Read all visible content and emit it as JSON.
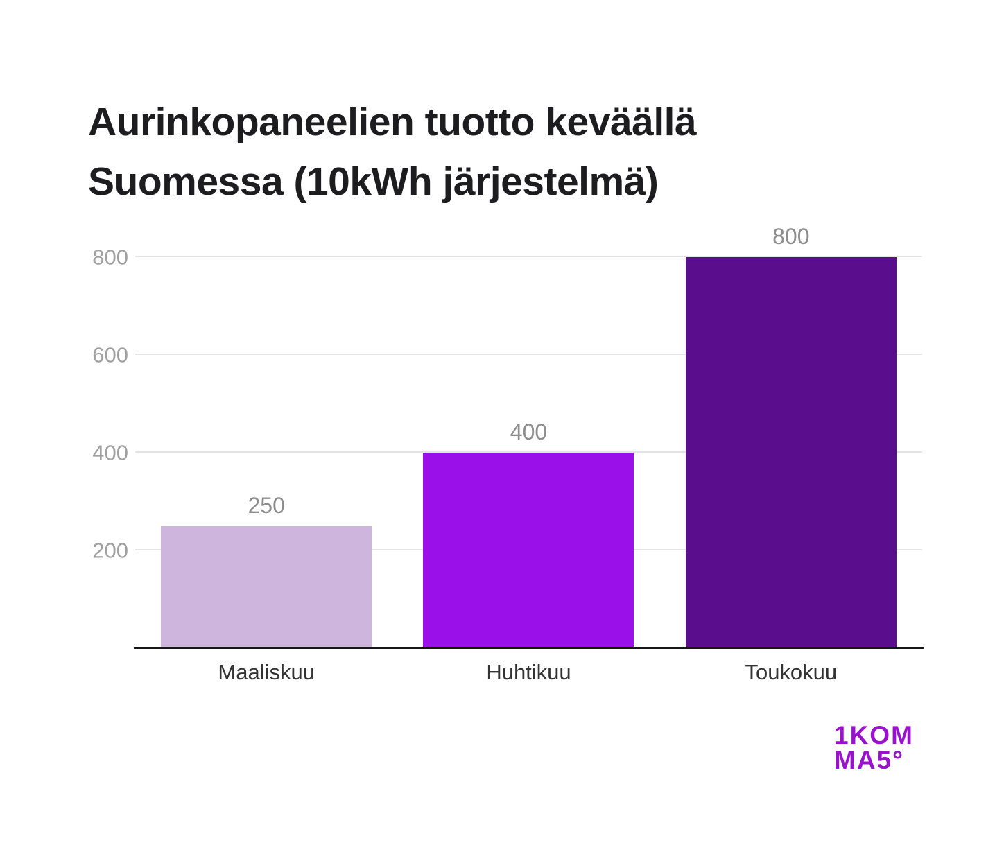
{
  "title": {
    "line1": "Aurinkopaneelien tuotto keväällä",
    "line2": "Suomessa (10kWh järjestelmä)"
  },
  "chart_data": {
    "type": "bar",
    "title": "Aurinkopaneelien tuotto keväällä Suomessa (10kWh järjestelmä)",
    "categories": [
      "Maaliskuu",
      "Huhtikuu",
      "Toukokuu"
    ],
    "values": [
      250,
      400,
      800
    ],
    "value_labels": [
      "250",
      "400",
      "800"
    ],
    "bar_colors": [
      "#cdb5de",
      "#9a10e9",
      "#5a0e8d"
    ],
    "yticks": [
      200,
      400,
      600,
      800
    ],
    "ylim": [
      0,
      800
    ],
    "grid": true,
    "legend": "none",
    "xlabel": "",
    "ylabel": ""
  },
  "logo": {
    "line1": "1KOM",
    "line2": "MA5°",
    "color": "#9913cc"
  }
}
